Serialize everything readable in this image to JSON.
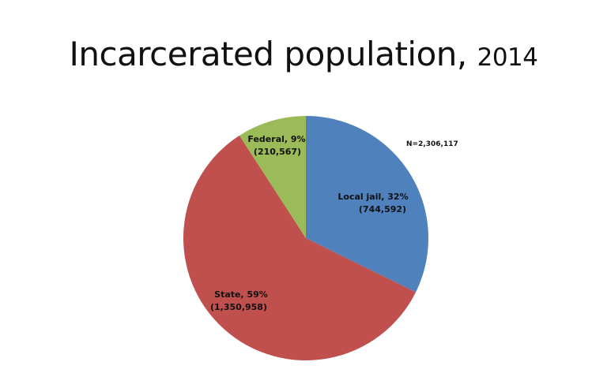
{
  "chart_data": {
    "type": "pie",
    "title": "Incarcerated population,",
    "title_year": "2014",
    "annotation": "N=2,306,117",
    "start_angle": "top, clockwise",
    "slices": [
      {
        "label": "Local jail, 32%",
        "count_label": "(744,592)",
        "value": 744592,
        "percent": 32,
        "color": "#4F81BD"
      },
      {
        "label": "State, 59%",
        "count_label": "(1,350,958)",
        "value": 1350958,
        "percent": 59,
        "color": "#C0504D"
      },
      {
        "label": "Federal, 9%",
        "count_label": "(210,567)",
        "value": 210567,
        "percent": 9,
        "color": "#9BBB59"
      }
    ]
  }
}
